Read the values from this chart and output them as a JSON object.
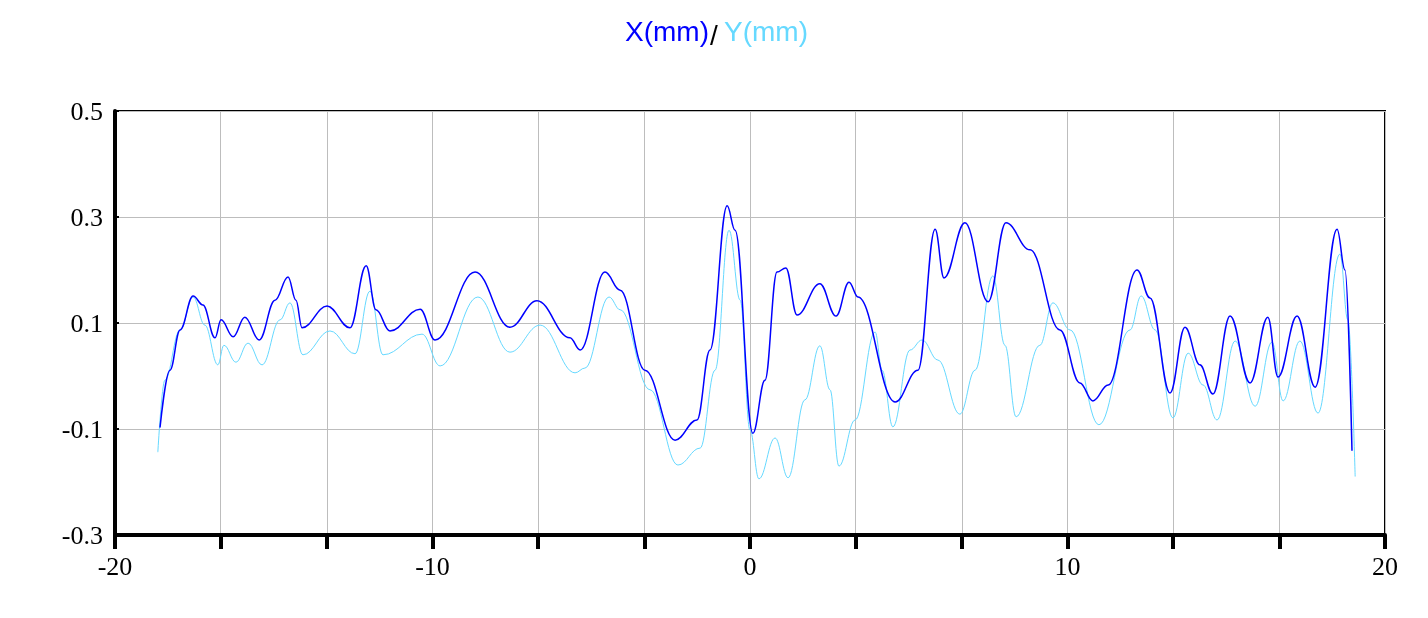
{
  "chart_data": {
    "type": "line",
    "legend": "top",
    "annotations": [
      "/"
    ],
    "grid": true,
    "marker": "none",
    "line_style": "solid",
    "xlim": [
      -20,
      20
    ],
    "ylim": [
      -0.3,
      0.5
    ],
    "xticks": [
      -20,
      {
        "value": -16.67,
        "label": null
      },
      {
        "value": -13.33,
        "label": null
      },
      -10,
      {
        "value": -6.67,
        "label": null
      },
      {
        "value": -3.33,
        "label": null
      },
      0,
      {
        "value": 3.33,
        "label": null
      },
      {
        "value": 6.67,
        "label": null
      },
      10,
      {
        "value": 13.33,
        "label": null
      },
      {
        "value": 16.67,
        "label": null
      },
      20
    ],
    "yticks": [
      -0.3,
      -0.1,
      0.1,
      0.3,
      0.5
    ],
    "series": [
      {
        "name": "X(mm)",
        "color": "#0000ff",
        "x": [
          -18.58,
          -18.27,
          -17.95,
          -17.54,
          -17.23,
          -16.85,
          -16.66,
          -16.28,
          -15.91,
          -15.46,
          -14.96,
          -14.55,
          -14.3,
          -14.11,
          -13.32,
          -12.6,
          -12.09,
          -11.78,
          -11.34,
          -10.39,
          -9.92,
          -8.66,
          -7.56,
          -6.71,
          -5.67,
          -5.35,
          -4.57,
          -4.09,
          -3.31,
          -2.36,
          -1.67,
          -1.26,
          -0.72,
          -0.47,
          0.09,
          0.47,
          0.85,
          1.13,
          1.48,
          2.2,
          2.71,
          3.12,
          3.4,
          4.57,
          5.29,
          5.83,
          6.11,
          6.77,
          7.5,
          8.06,
          8.82,
          9.76,
          10.39,
          10.8,
          11.28,
          12.19,
          12.6,
          13.23,
          13.7,
          14.17,
          14.58,
          15.12,
          15.75,
          16.31,
          16.63,
          17.23,
          17.8,
          18.49,
          18.74,
          18.96
        ],
        "values": [
          -0.096,
          0.011,
          0.087,
          0.151,
          0.134,
          0.072,
          0.106,
          0.074,
          0.111,
          0.068,
          0.143,
          0.187,
          0.143,
          0.091,
          0.132,
          0.091,
          0.208,
          0.125,
          0.085,
          0.126,
          0.068,
          0.196,
          0.092,
          0.142,
          0.072,
          0.049,
          0.196,
          0.162,
          0.011,
          -0.121,
          -0.083,
          0.049,
          0.321,
          0.275,
          -0.108,
          -0.008,
          0.196,
          0.204,
          0.115,
          0.174,
          0.113,
          0.177,
          0.149,
          -0.049,
          0.011,
          0.277,
          0.185,
          0.289,
          0.14,
          0.289,
          0.238,
          0.087,
          -0.013,
          -0.047,
          -0.017,
          0.2,
          0.147,
          -0.032,
          0.092,
          0.021,
          -0.034,
          0.113,
          -0.013,
          0.111,
          -0.002,
          0.113,
          -0.021,
          0.277,
          0.2,
          -0.14
        ]
      },
      {
        "name": "Y(mm)",
        "color": "#66d9ff",
        "x": [
          -18.65,
          -18.43,
          -17.95,
          -17.54,
          -17.17,
          -16.76,
          -16.57,
          -16.19,
          -15.81,
          -15.37,
          -14.8,
          -14.49,
          -14.08,
          -13.23,
          -12.44,
          -11.97,
          -11.56,
          -10.33,
          -9.76,
          -8.57,
          -7.56,
          -6.61,
          -5.51,
          -5.2,
          -4.44,
          -4.09,
          -3.15,
          -2.27,
          -1.57,
          -1.1,
          -0.66,
          -0.31,
          0,
          0.28,
          0.79,
          1.2,
          1.73,
          2.2,
          2.52,
          2.8,
          3.31,
          3.94,
          4.16,
          4.5,
          5.04,
          5.42,
          5.92,
          6.61,
          7.09,
          7.65,
          8.03,
          8.38,
          9.13,
          9.54,
          10.08,
          10.99,
          11.97,
          12.32,
          12.76,
          13.32,
          13.8,
          14.27,
          14.71,
          15.28,
          15.91,
          16.44,
          16.79,
          17.32,
          17.89,
          18.58,
          18.83,
          19.06
        ],
        "values": [
          -0.143,
          -0.008,
          0.087,
          0.149,
          0.096,
          0.021,
          0.058,
          0.026,
          0.062,
          0.021,
          0.106,
          0.138,
          0.04,
          0.085,
          0.042,
          0.16,
          0.04,
          0.079,
          0.019,
          0.149,
          0.045,
          0.096,
          0.006,
          0.015,
          0.149,
          0.125,
          -0.026,
          -0.168,
          -0.136,
          0.011,
          0.275,
          0.143,
          -0.102,
          -0.194,
          -0.117,
          -0.192,
          -0.045,
          0.057,
          -0.026,
          -0.17,
          -0.083,
          0.083,
          0.011,
          -0.096,
          0.049,
          0.068,
          0.03,
          -0.072,
          0.011,
          0.189,
          0.058,
          -0.077,
          0.058,
          0.138,
          0.087,
          -0.092,
          0.087,
          0.151,
          0.087,
          -0.079,
          0.043,
          -0.017,
          -0.083,
          0.066,
          -0.057,
          0.064,
          -0.047,
          0.066,
          -0.07,
          0.23,
          0.106,
          -0.189
        ]
      }
    ]
  }
}
